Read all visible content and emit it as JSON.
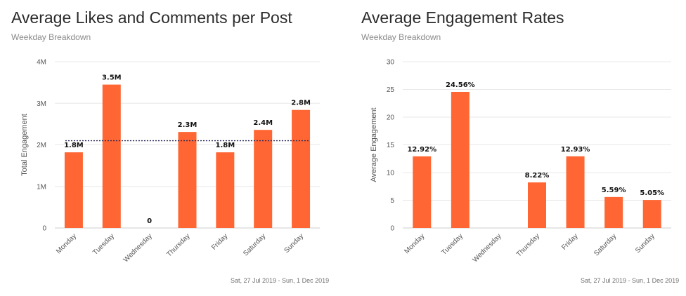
{
  "colors": {
    "bar": "#ff6633",
    "grid": "#e8e8e8",
    "axis": "#cccccc",
    "avgline": "#2c2c5a"
  },
  "chart_data": [
    {
      "type": "bar",
      "title": "Average Likes and Comments per Post",
      "subtitle": "Weekday Breakdown",
      "ylabel": "Total Engagement",
      "xlabel": "",
      "ylim": [
        0,
        4000000
      ],
      "yticks": [
        {
          "value": 0,
          "label": "0"
        },
        {
          "value": 1000000,
          "label": "1M"
        },
        {
          "value": 2000000,
          "label": "2M"
        },
        {
          "value": 3000000,
          "label": "3M"
        },
        {
          "value": 4000000,
          "label": "4M"
        }
      ],
      "categories": [
        "Monday",
        "Tuesday",
        "Wednesday",
        "Thursday",
        "Friday",
        "Saturday",
        "Sunday"
      ],
      "values": [
        1820000,
        3450000,
        0,
        2310000,
        1820000,
        2360000,
        2840000
      ],
      "data_labels": [
        "1.8M",
        "3.5M",
        "0",
        "2.3M",
        "1.8M",
        "2.4M",
        "2.8M"
      ],
      "average_line": 2100000,
      "grid": true,
      "footer": "Sat, 27 Jul 2019 - Sun, 1 Dec 2019"
    },
    {
      "type": "bar",
      "title": "Average Engagement Rates",
      "subtitle": "Weekday Breakdown",
      "ylabel": "Average Engagement",
      "xlabel": "",
      "ylim": [
        0,
        30
      ],
      "yticks": [
        {
          "value": 0,
          "label": "0"
        },
        {
          "value": 5,
          "label": "5"
        },
        {
          "value": 10,
          "label": "10"
        },
        {
          "value": 15,
          "label": "15"
        },
        {
          "value": 20,
          "label": "20"
        },
        {
          "value": 25,
          "label": "25"
        },
        {
          "value": 30,
          "label": "30"
        }
      ],
      "categories": [
        "Monday",
        "Tuesday",
        "Wednesday",
        "Thursday",
        "Friday",
        "Saturday",
        "Sunday"
      ],
      "values": [
        12.92,
        24.56,
        null,
        8.22,
        12.93,
        5.59,
        5.05
      ],
      "data_labels": [
        "12.92%",
        "24.56%",
        "",
        "8.22%",
        "12.93%",
        "5.59%",
        "5.05%"
      ],
      "grid": true,
      "footer": "Sat, 27 Jul 2019 - Sun, 1 Dec 2019"
    }
  ]
}
